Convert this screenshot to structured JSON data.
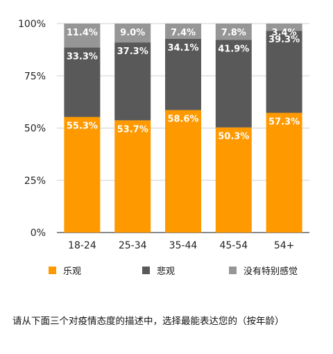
{
  "chart_data": {
    "type": "bar",
    "stacked": true,
    "categories": [
      "18-24",
      "25-34",
      "35-44",
      "45-54",
      "54+"
    ],
    "series": [
      {
        "name": "乐观",
        "color": "#FF9900",
        "values": [
          55.3,
          53.7,
          58.6,
          50.3,
          57.3
        ],
        "labels": [
          "55.3%",
          "53.7%",
          "58.6%",
          "50.3%",
          "57.3%"
        ]
      },
      {
        "name": "悲观",
        "color": "#595959",
        "values": [
          33.3,
          37.3,
          34.1,
          41.9,
          39.3
        ],
        "labels": [
          "33.3%",
          "37.3%",
          "34.1%",
          "41.9%",
          "39.3%"
        ]
      },
      {
        "name": "没有特别感觉",
        "color": "#969696",
        "values": [
          11.4,
          9.0,
          7.4,
          7.8,
          3.4
        ],
        "labels": [
          "11.4%",
          "9.0%",
          "7.4%",
          "7.8%",
          "3.4%"
        ]
      }
    ],
    "ylim": [
      0,
      100
    ],
    "yticks": [
      "0%",
      "25%",
      "50%",
      "75%",
      "100%"
    ],
    "grid": true,
    "legend_position": "bottom"
  },
  "legend": {
    "items": [
      {
        "label": "乐观",
        "color": "#FF9900"
      },
      {
        "label": "悲观",
        "color": "#595959"
      },
      {
        "label": "没有特别感觉",
        "color": "#969696"
      }
    ]
  },
  "caption": "请从下面三个对疫情态度的描述中，选择最能表达您的（按年龄）"
}
